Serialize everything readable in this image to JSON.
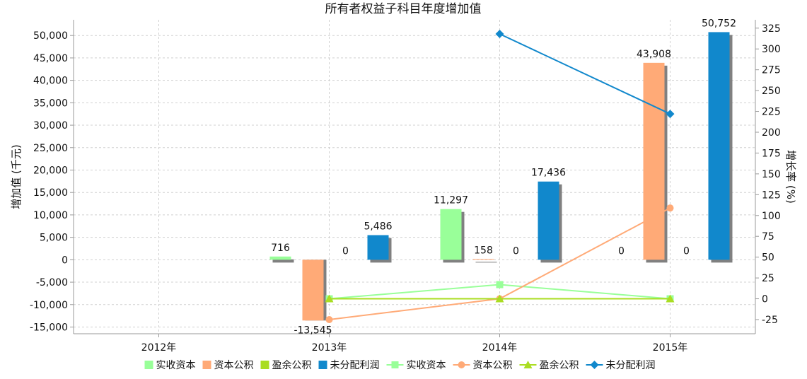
{
  "chart_data": {
    "type": "bar",
    "title": "所有者权益子科目年度增加值",
    "categories": [
      "2012年",
      "2013年",
      "2014年",
      "2015年"
    ],
    "y_left": {
      "label": "增加值 (千元)",
      "min": -16500,
      "max": 53500,
      "ticks": [
        -15000,
        -10000,
        -5000,
        0,
        5000,
        10000,
        15000,
        20000,
        25000,
        30000,
        35000,
        40000,
        45000,
        50000
      ],
      "tick_labels": [
        "-15,000",
        "-10,000",
        "-5,000",
        "0",
        "5,000",
        "10,000",
        "15,000",
        "20,000",
        "25,000",
        "30,000",
        "35,000",
        "40,000",
        "45,000",
        "50,000"
      ]
    },
    "y_right": {
      "label": "增长率 (%)",
      "min": -42,
      "max": 335,
      "ticks": [
        -25,
        0,
        25,
        50,
        75,
        100,
        125,
        150,
        175,
        200,
        225,
        250,
        275,
        300,
        325
      ],
      "tick_labels": [
        "-25",
        "0",
        "25",
        "50",
        "75",
        "100",
        "125",
        "150",
        "175",
        "200",
        "225",
        "250",
        "275",
        "300",
        "325"
      ]
    },
    "grid": true,
    "legend_position": "bottom",
    "bar_series": [
      {
        "name": "实收资本",
        "color": "#99ff99",
        "values": [
          null,
          716,
          11297,
          0
        ],
        "labels": [
          "",
          "716",
          "11,297",
          "0"
        ]
      },
      {
        "name": "资本公积",
        "color": "#ffaa77",
        "values": [
          null,
          -13545,
          158,
          43908
        ],
        "labels": [
          "",
          "-13,545",
          "158",
          "43,908"
        ]
      },
      {
        "name": "盈余公积",
        "color": "#aadd22",
        "values": [
          null,
          0,
          0,
          0
        ],
        "labels": [
          "",
          "0",
          "0",
          "0"
        ]
      },
      {
        "name": "未分配利润",
        "color": "#1188cc",
        "values": [
          null,
          5486,
          17436,
          50752
        ],
        "labels": [
          "",
          "5,486",
          "17,436",
          "50,752"
        ]
      }
    ],
    "line_series": [
      {
        "name": "实收资本",
        "color": "#99ff99",
        "marker": "square",
        "values": [
          null,
          0,
          17,
          0
        ]
      },
      {
        "name": "资本公积",
        "color": "#ffaa77",
        "marker": "circle",
        "values": [
          null,
          -25,
          0,
          109
        ]
      },
      {
        "name": "盈余公积",
        "color": "#aadd22",
        "marker": "triangle",
        "values": [
          null,
          0,
          0,
          0
        ]
      },
      {
        "name": "未分配利润",
        "color": "#1188cc",
        "marker": "diamond",
        "values": [
          null,
          null,
          318,
          222
        ]
      }
    ]
  }
}
